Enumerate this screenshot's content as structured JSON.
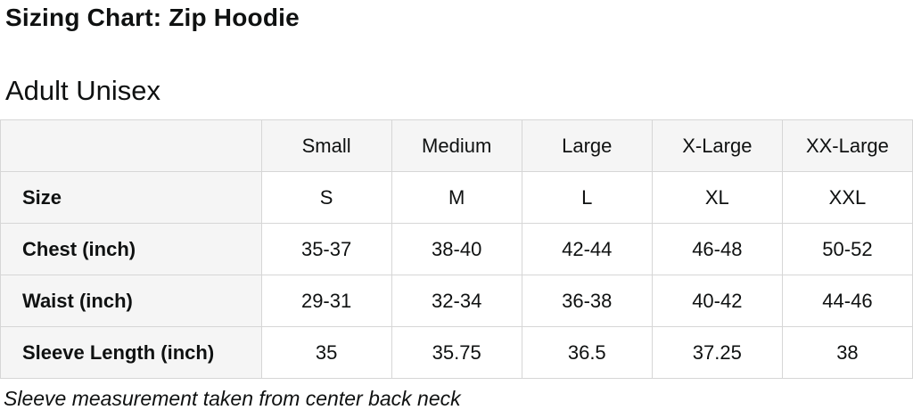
{
  "page": {
    "title": "Sizing Chart: Zip Hoodie",
    "subtitle": "Adult Unisex",
    "footnote": "Sleeve measurement taken from center back neck"
  },
  "table": {
    "column_headers": [
      "",
      "Small",
      "Medium",
      "Large",
      "X-Large",
      "XX-Large"
    ],
    "rows": [
      {
        "label": "Size",
        "values": [
          "S",
          "M",
          "L",
          "XL",
          "XXL"
        ]
      },
      {
        "label": "Chest (inch)",
        "values": [
          "35-37",
          "38-40",
          "42-44",
          "46-48",
          "50-52"
        ]
      },
      {
        "label": "Waist (inch)",
        "values": [
          "29-31",
          "32-34",
          "36-38",
          "40-42",
          "44-46"
        ]
      },
      {
        "label": "Sleeve Length (inch)",
        "values": [
          "35",
          "35.75",
          "36.5",
          "37.25",
          "38"
        ]
      }
    ]
  },
  "chart_data": {
    "type": "table",
    "title": "Sizing Chart: Zip Hoodie",
    "subtitle": "Adult Unisex",
    "columns": [
      "Small",
      "Medium",
      "Large",
      "X-Large",
      "XX-Large"
    ],
    "row_labels": [
      "Size",
      "Chest (inch)",
      "Waist (inch)",
      "Sleeve Length (inch)"
    ],
    "cells": [
      [
        "S",
        "M",
        "L",
        "XL",
        "XXL"
      ],
      [
        "35-37",
        "38-40",
        "42-44",
        "46-48",
        "50-52"
      ],
      [
        "29-31",
        "32-34",
        "36-38",
        "40-42",
        "44-46"
      ],
      [
        "35",
        "35.75",
        "36.5",
        "37.25",
        "38"
      ]
    ],
    "footnote": "Sleeve measurement taken from center back neck"
  },
  "colors": {
    "header_bg": "#f5f5f5",
    "border": "#d6d6d6",
    "text": "#0f1111",
    "page_bg": "#ffffff"
  }
}
